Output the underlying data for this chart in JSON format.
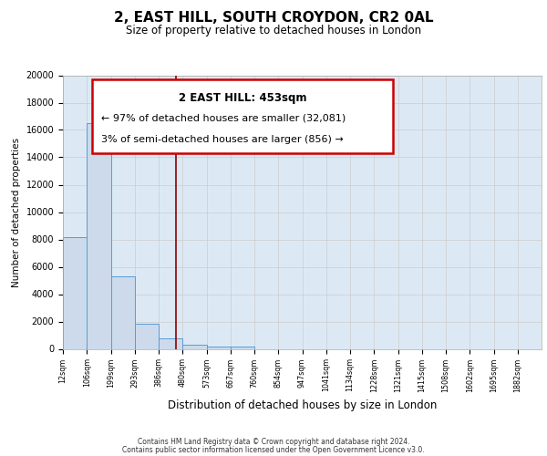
{
  "title1": "2, EAST HILL, SOUTH CROYDON, CR2 0AL",
  "title2": "Size of property relative to detached houses in London",
  "xlabel": "Distribution of detached houses by size in London",
  "ylabel": "Number of detached properties",
  "bar_heights": [
    8200,
    16500,
    5300,
    1850,
    800,
    300,
    200,
    150,
    0,
    0,
    0,
    0,
    0,
    0,
    0,
    0,
    0,
    0,
    0
  ],
  "bin_labels": [
    "12sqm",
    "106sqm",
    "199sqm",
    "293sqm",
    "386sqm",
    "480sqm",
    "573sqm",
    "667sqm",
    "760sqm",
    "854sqm",
    "947sqm",
    "1041sqm",
    "1134sqm",
    "1228sqm",
    "1321sqm",
    "1415sqm",
    "1508sqm",
    "1602sqm",
    "1695sqm",
    "1882sqm"
  ],
  "bar_color": "#ccdaeb",
  "bar_edge_color": "#5b9bd5",
  "vline_color": "#8b0000",
  "annotation_title": "2 EAST HILL: 453sqm",
  "annotation_line1": "← 97% of detached houses are smaller (32,081)",
  "annotation_line2": "3% of semi-detached houses are larger (856) →",
  "annotation_box_edge": "#cc0000",
  "ylim": [
    0,
    20000
  ],
  "yticks": [
    0,
    2000,
    4000,
    6000,
    8000,
    10000,
    12000,
    14000,
    16000,
    18000,
    20000
  ],
  "grid_color": "#cccccc",
  "bg_color": "#dce9f5",
  "footer1": "Contains HM Land Registry data © Crown copyright and database right 2024.",
  "footer2": "Contains public sector information licensed under the Open Government Licence v3.0."
}
